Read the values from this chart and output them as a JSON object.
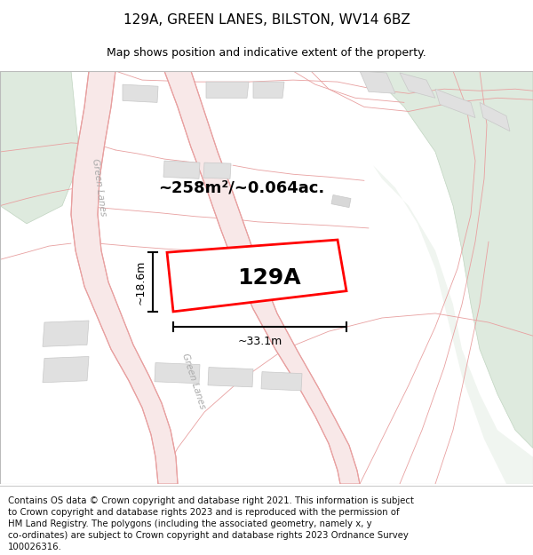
{
  "title": "129A, GREEN LANES, BILSTON, WV14 6BZ",
  "subtitle": "Map shows position and indicative extent of the property.",
  "footer_lines": [
    "Contains OS data © Crown copyright and database right 2021. This information is subject",
    "to Crown copyright and database rights 2023 and is reproduced with the permission of",
    "HM Land Registry. The polygons (including the associated geometry, namely x, y",
    "co-ordinates) are subject to Crown copyright and database rights 2023 Ordnance Survey",
    "100026316."
  ],
  "road_line_color": "#e8a0a0",
  "road_fill_color": "#f8e8e8",
  "building_color": "#e0e0e0",
  "building_outline": "#c8c8c8",
  "green_color": "#deeade",
  "green_outline": "#c0d4c0",
  "highlight_color": "#ff0000",
  "label_129A": "129A",
  "area_label": "~258m²/~0.064ac.",
  "width_label": "~33.1m",
  "height_label": "~18.6m",
  "road_label_upper": "Green Lanes",
  "road_label_lower": "Green Lanes",
  "title_fontsize": 11,
  "subtitle_fontsize": 9,
  "footer_fontsize": 7.3,
  "map_bg": "#ffffff"
}
